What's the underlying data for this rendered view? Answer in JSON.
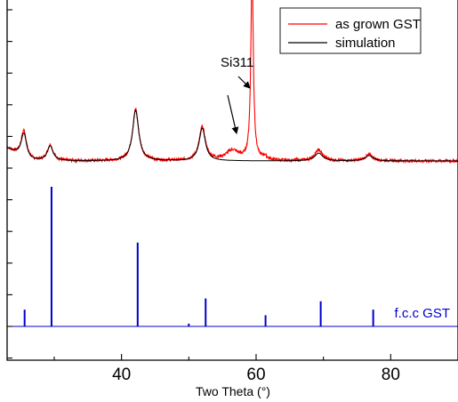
{
  "chart_data": {
    "type": "line",
    "xlabel": "Two Theta (°)",
    "ylabel": "",
    "xlim": [
      23,
      90
    ],
    "xticks": [
      40,
      60,
      80
    ],
    "legend": {
      "position": "top-right",
      "entries": [
        {
          "name": "as grown GST",
          "color": "#ff0000"
        },
        {
          "name": "simulation",
          "color": "#000000"
        }
      ]
    },
    "annotations": [
      {
        "text": "Si311",
        "arrows_to_x": [
          56.5,
          59.4
        ]
      }
    ],
    "baseline": {
      "experimental": 0.6,
      "simulation": 0.6
    },
    "measured_peaks": [
      {
        "x": 25.5,
        "height": 0.8,
        "width": 0.5
      },
      {
        "x": 29.4,
        "height": 0.45,
        "width": 0.5
      },
      {
        "x": 42.1,
        "height": 1.45,
        "width": 0.55
      },
      {
        "x": 52.0,
        "height": 0.95,
        "width": 0.55
      },
      {
        "x": 56.5,
        "height": 0.28,
        "width": 1.2
      },
      {
        "x": 59.4,
        "height": 5.3,
        "width": 0.22
      },
      {
        "x": 61.3,
        "height": 0.1,
        "width": 0.4
      },
      {
        "x": 69.3,
        "height": 0.3,
        "width": 0.7
      },
      {
        "x": 76.8,
        "height": 0.17,
        "width": 0.7
      }
    ],
    "simulated_peaks": [
      {
        "x": 25.5,
        "height": 0.72,
        "width": 0.5
      },
      {
        "x": 29.4,
        "height": 0.42,
        "width": 0.5
      },
      {
        "x": 42.1,
        "height": 1.42,
        "width": 0.55
      },
      {
        "x": 52.0,
        "height": 0.92,
        "width": 0.55
      },
      {
        "x": 69.3,
        "height": 0.22,
        "width": 0.7
      },
      {
        "x": 76.8,
        "height": 0.15,
        "width": 0.7
      }
    ],
    "reference": {
      "name": "f.c.c GST",
      "color": "#0000cc",
      "sticks": [
        {
          "x": 25.6,
          "intensity": 0.12
        },
        {
          "x": 29.6,
          "intensity": 1.0
        },
        {
          "x": 42.4,
          "intensity": 0.6
        },
        {
          "x": 50.0,
          "intensity": 0.02
        },
        {
          "x": 52.5,
          "intensity": 0.2
        },
        {
          "x": 61.4,
          "intensity": 0.08
        },
        {
          "x": 69.6,
          "intensity": 0.18
        },
        {
          "x": 77.4,
          "intensity": 0.12
        }
      ]
    }
  }
}
